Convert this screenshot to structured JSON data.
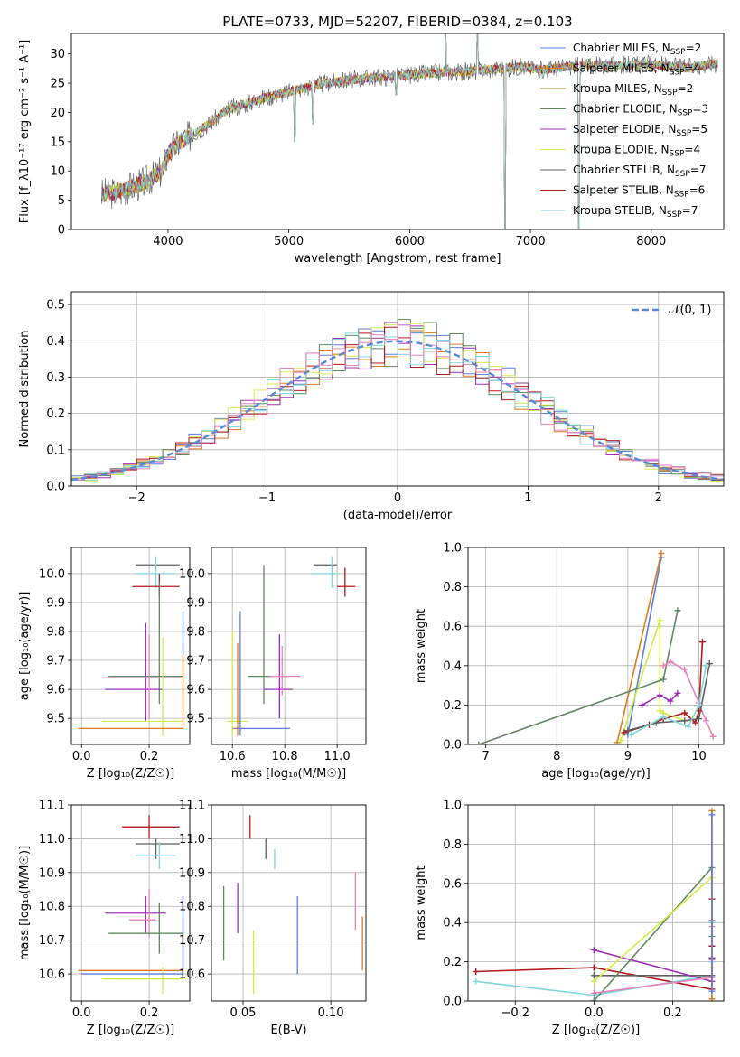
{
  "colors": {
    "chabrier_miles": "#5b7fd9",
    "salpeter_miles": "#e07a1f",
    "kroupa_miles": "#b08a20",
    "chabrier_elodie": "#5e8a5e",
    "salpeter_elodie": "#9b2fb5",
    "kroupa_elodie": "#d4ec4a",
    "chabrier_stelib": "#5f5f5f",
    "salpeter_stelib": "#b31b1b",
    "kroupa_stelib": "#7fd6dc",
    "pink": "#e583bd",
    "normal_curve": "#5b8ad6",
    "grid": "#b0b0b0"
  },
  "chart_data": [
    {
      "id": "spectrum",
      "type": "line",
      "title": "PLATE=0733, MJD=52207, FIBERID=0384, z=0.103",
      "xlabel": "wavelength [Angstrom, rest frame]",
      "ylabel": "Flux [f_λ10⁻¹⁷ erg cm⁻² s⁻¹ A⁻¹]",
      "xlim": [
        3200,
        8600
      ],
      "ylim": [
        0,
        33.5
      ],
      "xticks": [
        4000,
        5000,
        6000,
        7000,
        8000
      ],
      "yticks": [
        0,
        5,
        10,
        15,
        20,
        25,
        30
      ],
      "legend_position": "top-right",
      "legend": [
        {
          "label": "Chabrier MILES, N",
          "sub": "SSP",
          "tail": "=2",
          "color_key": "chabrier_miles"
        },
        {
          "label": "Salpeter MILES, N",
          "sub": "SSP",
          "tail": "=4",
          "color_key": "salpeter_miles"
        },
        {
          "label": "Kroupa MILES, N",
          "sub": "SSP",
          "tail": "=2",
          "color_key": "kroupa_miles"
        },
        {
          "label": "Chabrier ELODIE, N",
          "sub": "SSP",
          "tail": "=3",
          "color_key": "chabrier_elodie"
        },
        {
          "label": "Salpeter ELODIE, N",
          "sub": "SSP",
          "tail": "=5",
          "color_key": "salpeter_elodie"
        },
        {
          "label": "Kroupa ELODIE, N",
          "sub": "SSP",
          "tail": "=4",
          "color_key": "kroupa_elodie"
        },
        {
          "label": "Chabrier STELIB, N",
          "sub": "SSP",
          "tail": "=7",
          "color_key": "chabrier_stelib"
        },
        {
          "label": "Salpeter STELIB, N",
          "sub": "SSP",
          "tail": "=6",
          "color_key": "salpeter_stelib"
        },
        {
          "label": "Kroupa STELIB, N",
          "sub": "SSP",
          "tail": "=7",
          "color_key": "kroupa_stelib"
        }
      ],
      "continuum": {
        "x": [
          3450,
          3600,
          3800,
          3950,
          4000,
          4100,
          4300,
          4500,
          4800,
          5000,
          5300,
          5600,
          5900,
          6200,
          6500,
          6700,
          6900,
          7100,
          7400,
          7700,
          8000,
          8300,
          8500
        ],
        "y": [
          6,
          6.5,
          8,
          10,
          13,
          15,
          17.5,
          20.5,
          22.5,
          23.5,
          25,
          25.8,
          26.2,
          26.8,
          27,
          27.4,
          27.8,
          27.3,
          28,
          28,
          28.2,
          27.6,
          28.3
        ]
      },
      "features": [
        {
          "x": 5050,
          "y": 15
        },
        {
          "x": 5200,
          "y": 18
        },
        {
          "x": 5890,
          "y": 23
        },
        {
          "x": 6300,
          "y": 33.5
        },
        {
          "x": 6560,
          "y": 33.5
        },
        {
          "x": 6790,
          "y": 0
        },
        {
          "x": 7400,
          "y": 0
        }
      ]
    },
    {
      "id": "residuals",
      "type": "line",
      "xlabel": "(data-model)/error",
      "ylabel": "Normed distribution",
      "xlim": [
        -2.5,
        2.5
      ],
      "ylim": [
        0,
        0.535
      ],
      "xticks": [
        -2,
        -1,
        0,
        1,
        2
      ],
      "yticks": [
        0.0,
        0.1,
        0.2,
        0.3,
        0.4,
        0.5
      ],
      "legend_position": "top-right",
      "legend": [
        {
          "label": "𝒩(0, 1)",
          "color_key": "normal_curve",
          "style": "dashed"
        }
      ],
      "bin_width": 0.1,
      "series": [
        {
          "color_key": "chabrier_miles",
          "seed": 1
        },
        {
          "color_key": "salpeter_miles",
          "seed": 2
        },
        {
          "color_key": "chabrier_elodie",
          "seed": 3
        },
        {
          "color_key": "salpeter_elodie",
          "seed": 4
        },
        {
          "color_key": "kroupa_elodie",
          "seed": 5
        },
        {
          "color_key": "salpeter_stelib",
          "seed": 6
        },
        {
          "color_key": "kroupa_stelib",
          "seed": 7
        },
        {
          "color_key": "pink",
          "seed": 8
        }
      ]
    },
    {
      "id": "z_age",
      "type": "scatter",
      "xlabel": "Z [log₁₀(Z/Z☉)]",
      "ylabel": "age  [log₁₀(age/yr)]",
      "xlim": [
        -0.03,
        0.32
      ],
      "ylim": [
        9.41,
        10.09
      ],
      "xticks": [
        0.0,
        0.2
      ],
      "yticks": [
        9.5,
        9.6,
        9.7,
        9.8,
        9.9,
        10.0
      ],
      "points": [
        {
          "x": 0.22,
          "y": 10.03,
          "xlo": 0.16,
          "xhi": 0.29,
          "ylo": 10.03,
          "yhi": 10.03,
          "color_key": "chabrier_stelib"
        },
        {
          "x": 0.22,
          "y": 10.0,
          "xlo": 0.16,
          "xhi": 0.28,
          "ylo": 9.95,
          "yhi": 10.06,
          "color_key": "kroupa_stelib"
        },
        {
          "x": 0.23,
          "y": 9.955,
          "xlo": 0.15,
          "xhi": 0.29,
          "ylo": 9.92,
          "yhi": 10.0,
          "color_key": "salpeter_stelib"
        },
        {
          "x": 0.23,
          "y": 9.645,
          "xlo": 0.08,
          "xhi": 0.3,
          "ylo": 9.55,
          "yhi": 9.97,
          "color_key": "chabrier_elodie"
        },
        {
          "x": 0.19,
          "y": 9.6,
          "xlo": 0.07,
          "xhi": 0.24,
          "ylo": 9.49,
          "yhi": 9.83,
          "color_key": "salpeter_elodie"
        },
        {
          "x": 0.2,
          "y": 9.64,
          "xlo": 0.06,
          "xhi": 0.3,
          "ylo": 9.5,
          "yhi": 9.79,
          "color_key": "pink"
        },
        {
          "x": 0.24,
          "y": 9.49,
          "xlo": 0.06,
          "xhi": 0.3,
          "ylo": 9.44,
          "yhi": 9.78,
          "color_key": "kroupa_elodie"
        },
        {
          "x": 0.3,
          "y": 9.465,
          "xlo": -0.01,
          "xhi": 0.3,
          "ylo": 9.465,
          "yhi": 9.76,
          "color_key": "salpeter_miles"
        },
        {
          "x": 0.3,
          "y": 9.8,
          "xlo": 0.3,
          "xhi": 0.3,
          "ylo": 9.72,
          "yhi": 9.87,
          "color_key": "chabrier_miles"
        }
      ]
    },
    {
      "id": "mass_age",
      "type": "scatter",
      "xlabel": "mass [log₁₀(M/M☉)]",
      "ylabel": "",
      "xlim": [
        10.52,
        11.11
      ],
      "ylim": [
        9.41,
        10.09
      ],
      "xticks": [
        10.6,
        10.8,
        11.0
      ],
      "yticks": [
        9.5,
        9.6,
        9.7,
        9.8,
        9.9,
        10.0
      ],
      "points": [
        {
          "x": 10.98,
          "y": 10.03,
          "xlo": 10.91,
          "xhi": 11.0,
          "ylo": 10.03,
          "yhi": 10.03,
          "color_key": "chabrier_stelib"
        },
        {
          "x": 10.98,
          "y": 10.0,
          "xlo": 10.9,
          "xhi": 11.01,
          "ylo": 9.95,
          "yhi": 10.06,
          "color_key": "kroupa_stelib"
        },
        {
          "x": 11.03,
          "y": 9.955,
          "xlo": 11.0,
          "xhi": 11.07,
          "ylo": 9.92,
          "yhi": 10.02,
          "color_key": "salpeter_stelib"
        },
        {
          "x": 10.72,
          "y": 9.645,
          "xlo": 10.66,
          "xhi": 10.81,
          "ylo": 9.55,
          "yhi": 10.03,
          "color_key": "chabrier_elodie"
        },
        {
          "x": 10.78,
          "y": 9.6,
          "xlo": 10.72,
          "xhi": 10.83,
          "ylo": 9.5,
          "yhi": 9.79,
          "color_key": "salpeter_elodie"
        },
        {
          "x": 10.79,
          "y": 9.645,
          "xlo": 10.74,
          "xhi": 10.86,
          "ylo": 9.58,
          "yhi": 9.75,
          "color_key": "pink"
        },
        {
          "x": 10.6,
          "y": 9.49,
          "xlo": 10.58,
          "xhi": 10.66,
          "ylo": 9.44,
          "yhi": 9.8,
          "color_key": "kroupa_elodie"
        },
        {
          "x": 10.62,
          "y": 9.465,
          "xlo": 10.6,
          "xhi": 10.64,
          "ylo": 9.44,
          "yhi": 9.76,
          "color_key": "salpeter_miles"
        },
        {
          "x": 10.63,
          "y": 9.465,
          "xlo": 10.61,
          "xhi": 10.82,
          "ylo": 9.44,
          "yhi": 9.87,
          "color_key": "chabrier_miles"
        }
      ]
    },
    {
      "id": "age_weight",
      "type": "line",
      "xlabel": "age  [log₁₀(age/yr)]",
      "ylabel": "mass weight",
      "xlim": [
        6.75,
        10.35
      ],
      "ylim": [
        0.0,
        1.0
      ],
      "xticks": [
        7,
        8,
        9,
        10
      ],
      "yticks": [
        0.0,
        0.2,
        0.4,
        0.6,
        0.8,
        1.0
      ],
      "series": [
        {
          "color_key": "chabrier_miles",
          "x": [
            9.0,
            9.47
          ],
          "y": [
            0.05,
            0.95
          ]
        },
        {
          "color_key": "salpeter_miles",
          "x": [
            8.85,
            9.47
          ],
          "y": [
            0.01,
            0.97
          ]
        },
        {
          "color_key": "kroupa_elodie",
          "x": [
            8.9,
            9.45,
            9.45,
            9.5,
            9.8
          ],
          "y": [
            0.02,
            0.63,
            0.17,
            0.16,
            0.12
          ]
        },
        {
          "color_key": "chabrier_elodie",
          "x": [
            6.9,
            9.5,
            9.7
          ],
          "y": [
            0.0,
            0.33,
            0.68
          ]
        },
        {
          "color_key": "salpeter_elodie",
          "x": [
            9.2,
            9.45,
            9.6,
            9.7
          ],
          "y": [
            0.2,
            0.25,
            0.22,
            0.26
          ]
        },
        {
          "color_key": "pink",
          "x": [
            9.5,
            9.6,
            9.8,
            10.0,
            10.1,
            10.2
          ],
          "y": [
            0.4,
            0.42,
            0.38,
            0.21,
            0.12,
            0.04
          ]
        },
        {
          "color_key": "salpeter_stelib",
          "x": [
            8.95,
            9.3,
            9.5,
            9.8,
            9.95,
            10.0,
            10.05
          ],
          "y": [
            0.06,
            0.1,
            0.13,
            0.16,
            0.11,
            0.17,
            0.52
          ]
        },
        {
          "color_key": "chabrier_stelib",
          "x": [
            9.0,
            9.4,
            9.8,
            10.0,
            10.15
          ],
          "y": [
            0.07,
            0.11,
            0.12,
            0.13,
            0.41
          ]
        },
        {
          "color_key": "kroupa_stelib",
          "x": [
            9.05,
            9.5,
            9.85,
            10.0,
            10.1
          ],
          "y": [
            0.05,
            0.14,
            0.09,
            0.2,
            0.4
          ]
        }
      ]
    },
    {
      "id": "z_mass",
      "type": "scatter",
      "xlabel": "Z [log₁₀(Z/Z☉)]",
      "ylabel": "mass [log₁₀(M/M☉)]",
      "xlim": [
        -0.03,
        0.32
      ],
      "ylim": [
        10.52,
        11.1
      ],
      "xticks": [
        0.0,
        0.2
      ],
      "yticks": [
        10.6,
        10.7,
        10.8,
        10.9,
        11.0,
        11.1
      ],
      "points": [
        {
          "x": 0.2,
          "y": 11.035,
          "xlo": 0.12,
          "xhi": 0.29,
          "ylo": 11.0,
          "yhi": 11.07,
          "color_key": "salpeter_stelib"
        },
        {
          "x": 0.22,
          "y": 10.985,
          "xlo": 0.16,
          "xhi": 0.29,
          "ylo": 10.94,
          "yhi": 11.0,
          "color_key": "chabrier_stelib"
        },
        {
          "x": 0.23,
          "y": 10.95,
          "xlo": 0.16,
          "xhi": 0.28,
          "ylo": 10.91,
          "yhi": 10.99,
          "color_key": "kroupa_stelib"
        },
        {
          "x": 0.19,
          "y": 10.78,
          "xlo": 0.07,
          "xhi": 0.25,
          "ylo": 10.72,
          "yhi": 10.83,
          "color_key": "salpeter_elodie"
        },
        {
          "x": 0.2,
          "y": 10.76,
          "xlo": 0.14,
          "xhi": 0.22,
          "ylo": 10.71,
          "yhi": 10.85,
          "color_key": "pink"
        },
        {
          "x": 0.23,
          "y": 10.72,
          "xlo": 0.08,
          "xhi": 0.3,
          "ylo": 10.66,
          "yhi": 10.81,
          "color_key": "chabrier_elodie"
        },
        {
          "x": 0.3,
          "y": 10.61,
          "xlo": -0.01,
          "xhi": 0.3,
          "ylo": 10.61,
          "yhi": 10.77,
          "color_key": "salpeter_miles"
        },
        {
          "x": 0.24,
          "y": 10.585,
          "xlo": 0.06,
          "xhi": 0.3,
          "ylo": 10.54,
          "yhi": 10.62,
          "color_key": "kroupa_elodie"
        },
        {
          "x": 0.3,
          "y": 10.6,
          "xlo": 0.0,
          "xhi": 0.3,
          "ylo": 10.6,
          "yhi": 10.83,
          "color_key": "chabrier_miles"
        }
      ]
    },
    {
      "id": "ebv_mass",
      "type": "scatter",
      "xlabel": "E(B-V)",
      "ylabel": "",
      "xlim": [
        0.032,
        0.12
      ],
      "ylim": [
        10.52,
        11.1
      ],
      "xticks": [
        0.05,
        0.1
      ],
      "yticks": [
        10.6,
        10.7,
        10.8,
        10.9,
        11.0,
        11.1
      ],
      "points": [
        {
          "x": 0.054,
          "y": 11.035,
          "ylo": 11.0,
          "yhi": 11.07,
          "color_key": "salpeter_stelib"
        },
        {
          "x": 0.063,
          "y": 10.985,
          "ylo": 10.94,
          "yhi": 11.0,
          "color_key": "chabrier_stelib"
        },
        {
          "x": 0.068,
          "y": 10.95,
          "ylo": 10.91,
          "yhi": 10.97,
          "color_key": "kroupa_stelib"
        },
        {
          "x": 0.039,
          "y": 10.75,
          "ylo": 10.64,
          "yhi": 10.86,
          "color_key": "chabrier_elodie"
        },
        {
          "x": 0.047,
          "y": 10.78,
          "ylo": 10.72,
          "yhi": 10.87,
          "color_key": "salpeter_elodie"
        },
        {
          "x": 0.056,
          "y": 10.63,
          "ylo": 10.54,
          "yhi": 10.73,
          "color_key": "kroupa_elodie"
        },
        {
          "x": 0.081,
          "y": 10.71,
          "ylo": 10.6,
          "yhi": 10.83,
          "color_key": "chabrier_miles"
        },
        {
          "x": 0.114,
          "y": 10.82,
          "ylo": 10.73,
          "yhi": 10.9,
          "color_key": "pink"
        },
        {
          "x": 0.118,
          "y": 10.69,
          "ylo": 10.61,
          "yhi": 10.77,
          "color_key": "salpeter_miles"
        }
      ]
    },
    {
      "id": "z_weight",
      "type": "line",
      "xlabel": "Z [log₁₀(Z/Z☉)]",
      "ylabel": "mass weight",
      "xlim": [
        -0.32,
        0.33
      ],
      "ylim": [
        0.0,
        1.0
      ],
      "xticks": [
        -0.2,
        0.0,
        0.2
      ],
      "yticks": [
        0.0,
        0.2,
        0.4,
        0.6,
        0.8,
        1.0
      ],
      "series": [
        {
          "color_key": "salpeter_stelib",
          "x": [
            -0.3,
            0.0,
            0.3,
            0.3,
            0.3,
            0.3
          ],
          "y": [
            0.15,
            0.17,
            0.06,
            0.52,
            0.4,
            0.28
          ]
        },
        {
          "color_key": "kroupa_stelib",
          "x": [
            -0.3,
            0.0,
            0.3,
            0.3,
            0.3
          ],
          "y": [
            0.1,
            0.03,
            0.13,
            0.4,
            0.2
          ]
        },
        {
          "color_key": "chabrier_stelib",
          "x": [
            0.0,
            0.3,
            0.3,
            0.3
          ],
          "y": [
            0.13,
            0.13,
            0.41,
            0.12
          ]
        },
        {
          "color_key": "chabrier_elodie",
          "x": [
            0.0,
            0.3,
            0.3
          ],
          "y": [
            0.0,
            0.68,
            0.33
          ]
        },
        {
          "color_key": "salpeter_elodie",
          "x": [
            0.0,
            0.3,
            0.3
          ],
          "y": [
            0.26,
            0.1,
            0.22
          ]
        },
        {
          "color_key": "kroupa_elodie",
          "x": [
            0.0,
            0.3,
            0.3
          ],
          "y": [
            0.1,
            0.63,
            0.17
          ]
        },
        {
          "color_key": "pink",
          "x": [
            0.0,
            0.3,
            0.3,
            0.3
          ],
          "y": [
            0.04,
            0.12,
            0.38,
            0.21
          ]
        },
        {
          "color_key": "salpeter_miles",
          "x": [
            0.3,
            0.3
          ],
          "y": [
            0.97,
            0.01
          ]
        },
        {
          "color_key": "chabrier_miles",
          "x": [
            0.3,
            0.3
          ],
          "y": [
            0.95,
            0.05
          ]
        }
      ]
    }
  ]
}
